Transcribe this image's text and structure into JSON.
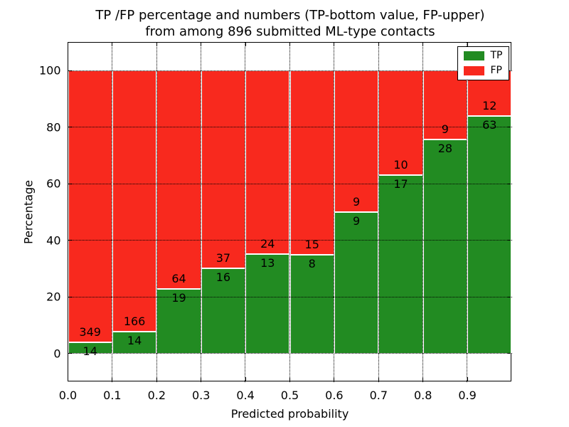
{
  "title": {
    "line1": "TP /FP percentage and numbers (TP-bottom value, FP-upper)",
    "line2": "from among 896 submitted ML-type contacts"
  },
  "chart_data": {
    "type": "bar",
    "stacked": true,
    "normalized_to_percent": true,
    "title": "TP /FP percentage and numbers (TP-bottom value, FP-upper) from among 896 submitted ML-type contacts",
    "xlabel": "Predicted probability",
    "ylabel": "Percentage",
    "total_contacts": 896,
    "categories": [
      "0.0-0.1",
      "0.1-0.2",
      "0.2-0.3",
      "0.3-0.4",
      "0.4-0.5",
      "0.5-0.6",
      "0.6-0.7",
      "0.7-0.8",
      "0.8-0.9",
      "0.9-1.0"
    ],
    "xtick_labels": [
      "0.0",
      "0.1",
      "0.2",
      "0.3",
      "0.4",
      "0.5",
      "0.6",
      "0.7",
      "0.8",
      "0.9"
    ],
    "ytick_values": [
      0,
      20,
      40,
      60,
      80,
      100
    ],
    "xlim": [
      0.0,
      1.0
    ],
    "ylim": [
      -10,
      110
    ],
    "grid": true,
    "legend_position": "upper right",
    "series": [
      {
        "name": "TP",
        "color": "#228b22",
        "values": [
          14,
          14,
          19,
          16,
          13,
          8,
          9,
          17,
          28,
          63
        ]
      },
      {
        "name": "FP",
        "color": "#f8291e",
        "values": [
          349,
          166,
          64,
          37,
          24,
          15,
          9,
          10,
          9,
          12
        ]
      }
    ],
    "tp_percent": [
      3.9,
      7.8,
      22.9,
      30.2,
      35.1,
      34.8,
      50.0,
      63.0,
      75.7,
      84.0
    ]
  },
  "colors": {
    "tp_green": "#228b22",
    "fp_red": "#f8291e",
    "grid": "#000000",
    "background": "#ffffff"
  }
}
